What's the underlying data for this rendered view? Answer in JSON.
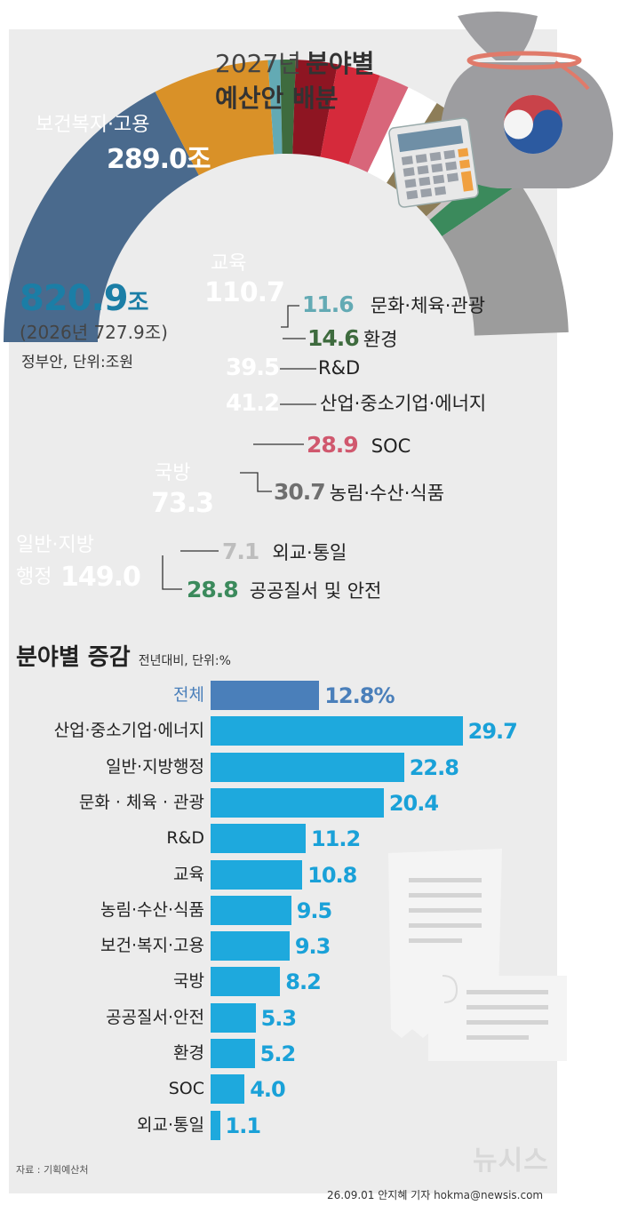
{
  "title": {
    "line1_prefix": "2027년",
    "line1_bold": "분야별",
    "line2": "예산안 배분"
  },
  "total": {
    "value": "820.9",
    "unit": "조",
    "previous": "(2026년 727.9조)",
    "note": "정부안, 단위:조원"
  },
  "section2": {
    "title": "분야별 증감",
    "subtitle": "전년대비, 단위:%"
  },
  "source": "자료 : 기획예산처",
  "credit": "26.09.01  안지혜 기자  hokma@newsis.com",
  "watermark": "뉴시스",
  "colors": {
    "primary_bar": "#1ea9dd",
    "total_bar": "#4a7fba",
    "total_text": "#1b7ea6"
  },
  "icons": [
    "money-bag-icon",
    "calculator-icon",
    "receipt-icon"
  ],
  "chart_data": [
    {
      "type": "pie",
      "variant": "donut",
      "unit": "조원",
      "total": 820.9,
      "segments": [
        {
          "name": "보건복지·고용",
          "display": "289.0조",
          "value": 289.0,
          "color": "#4a6a8d"
        },
        {
          "name": "교육",
          "display": "110.7",
          "value": 110.7,
          "color": "#d99128"
        },
        {
          "name": "문화·체육·관광",
          "display": "11.6",
          "value": 11.6,
          "color": "#63aab4"
        },
        {
          "name": "환경",
          "display": "14.6",
          "value": 14.6,
          "color": "#3e6b3e"
        },
        {
          "name": "R&D",
          "display": "39.5",
          "value": 39.5,
          "color": "#8e1522"
        },
        {
          "name": "산업·중소기업·에너지",
          "display": "41.2",
          "value": 41.2,
          "color": "#d52a3b"
        },
        {
          "name": "SOC",
          "display": "28.9",
          "value": 28.9,
          "color": "#d8667a"
        },
        {
          "name": "농림·수산·식품",
          "display": "30.7",
          "value": 30.7,
          "color": "#ffffff"
        },
        {
          "name": "국방",
          "display": "73.3",
          "value": 73.3,
          "color": "#8d7d58"
        },
        {
          "name": "외교·통일",
          "display": "7.1",
          "value": 7.1,
          "color": "#cbc3c3"
        },
        {
          "name": "공공질서 및 안전",
          "display": "28.8",
          "value": 28.8,
          "color": "#3b8a5c"
        },
        {
          "name": "일반·지방행정",
          "display": "149.0",
          "value": 149.0,
          "color": "#9c9c9c"
        }
      ]
    },
    {
      "type": "bar",
      "orientation": "horizontal",
      "unit": "%",
      "xlim": [
        0,
        35
      ],
      "categories": [
        "전체",
        "산업·중소기업·에너지",
        "일반·지방행정",
        "문화 · 체육 · 관광",
        "R&D",
        "교육",
        "농림·수산·식품",
        "보건·복지·고용",
        "국방",
        "공공질서·안전",
        "환경",
        "SOC",
        "외교·통일"
      ],
      "values": [
        12.8,
        29.7,
        22.8,
        20.4,
        11.2,
        10.8,
        9.5,
        9.3,
        8.2,
        5.3,
        5.2,
        4.0,
        1.1
      ],
      "labels": [
        "12.8%",
        "29.7",
        "22.8",
        "20.4",
        "11.2",
        "10.8",
        "9.5",
        "9.3",
        "8.2",
        "5.3",
        "5.2",
        "4.0",
        "1.1"
      ]
    }
  ]
}
